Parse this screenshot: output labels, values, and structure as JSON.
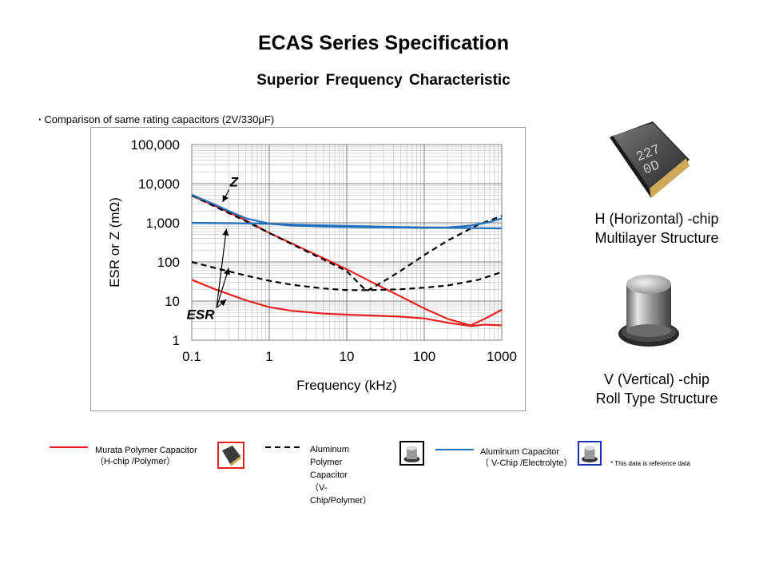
{
  "header": {
    "title": "ECAS Series Specification",
    "subtitle": "Superior Frequency Characteristic",
    "note": "Comparison of same rating capacitors (2V/330μF)"
  },
  "chips": {
    "horizontal": {
      "line1": "H (Horizontal) -chip",
      "line2": "Multilayer Structure",
      "marking": "227\n0D"
    },
    "vertical": {
      "line1": "V (Vertical) -chip",
      "line2": "Roll Type Structure"
    }
  },
  "legend": {
    "murata": {
      "line1": "Murata Polymer Capacitor",
      "line2": "（H-chip /Polymer）",
      "color": "#e8211f"
    },
    "aluminum_polymer": {
      "lines": [
        "Aluminum",
        "Polymer",
        "Capacitor",
        "（V-",
        "Chip/Polymer）"
      ],
      "color": "#000000"
    },
    "aluminum": {
      "line1": "Aluminum Capacitor",
      "line2": "（ V-Chip /Electrolyte）",
      "color": "#1f6fbf"
    },
    "reference": "* This data is reference data"
  },
  "chart_data": {
    "type": "line",
    "xlabel": "Frequency (kHz)",
    "ylabel": "ESR or Z (mΩ)",
    "x_scale": "log",
    "y_scale": "log",
    "xlim": [
      0.1,
      1000
    ],
    "ylim": [
      1,
      100000
    ],
    "x_ticks": [
      0.1,
      1,
      10,
      100,
      1000
    ],
    "x_tick_labels": [
      "0.1",
      "1",
      "10",
      "100",
      "1000"
    ],
    "y_ticks": [
      1,
      10,
      100,
      1000,
      10000,
      100000
    ],
    "y_tick_labels": [
      "1",
      "10",
      "100",
      "1,000",
      "10,000",
      "100,000"
    ],
    "grid": true,
    "annotations": [
      {
        "text": "Z",
        "x": 0.35,
        "y": 8500,
        "targets": [
          [
            0.25,
            3400
          ]
        ]
      },
      {
        "text": "ESR",
        "x": 0.13,
        "y": 3.5,
        "targets": [
          [
            0.28,
            700
          ],
          [
            0.3,
            70
          ],
          [
            0.28,
            11
          ]
        ]
      }
    ],
    "series": [
      {
        "color": "#e8211f",
        "dash": false,
        "x": [
          0.1,
          0.2,
          0.5,
          1,
          2,
          5,
          10,
          20,
          50,
          100,
          200,
          400,
          600,
          1000
        ],
        "y": [
          5000,
          2700,
          1150,
          550,
          290,
          125,
          65,
          32,
          13,
          6.5,
          3.5,
          2.4,
          3.5,
          6
        ]
      },
      {
        "color": "#e8211f",
        "dash": false,
        "x": [
          0.1,
          0.2,
          0.5,
          1,
          2,
          5,
          10,
          20,
          50,
          100,
          200,
          400,
          600,
          1000
        ],
        "y": [
          35,
          20,
          10.5,
          7,
          5.6,
          4.8,
          4.5,
          4.3,
          4.0,
          3.6,
          2.8,
          2.3,
          2.5,
          2.4
        ]
      },
      {
        "color": "#000000",
        "dash": true,
        "x": [
          0.1,
          0.2,
          0.5,
          1,
          2,
          5,
          10,
          18,
          30,
          50,
          100,
          200,
          500,
          1000
        ],
        "y": [
          5000,
          2600,
          1100,
          550,
          280,
          115,
          58,
          18,
          32,
          60,
          150,
          350,
          900,
          1500
        ]
      },
      {
        "color": "#000000",
        "dash": true,
        "x": [
          0.1,
          0.2,
          0.5,
          1,
          2,
          5,
          10,
          20,
          50,
          100,
          200,
          500,
          1000
        ],
        "y": [
          100,
          70,
          45,
          33,
          26,
          21,
          19,
          19,
          20,
          22,
          25,
          35,
          55
        ]
      },
      {
        "color": "#1f6fbf",
        "dash": false,
        "x": [
          0.1,
          0.2,
          0.3,
          0.5,
          1,
          2,
          5,
          10,
          20,
          50,
          100,
          200,
          400,
          700,
          1000
        ],
        "y": [
          5200,
          2900,
          2000,
          1300,
          950,
          850,
          800,
          780,
          770,
          760,
          750,
          760,
          850,
          1050,
          1300
        ]
      },
      {
        "color": "#1f6fbf",
        "dash": false,
        "x": [
          0.1,
          0.5,
          1,
          2,
          5,
          10,
          20,
          50,
          100,
          200,
          500,
          1000
        ],
        "y": [
          1000,
          970,
          940,
          900,
          860,
          830,
          810,
          780,
          760,
          750,
          730,
          720
        ]
      }
    ]
  }
}
